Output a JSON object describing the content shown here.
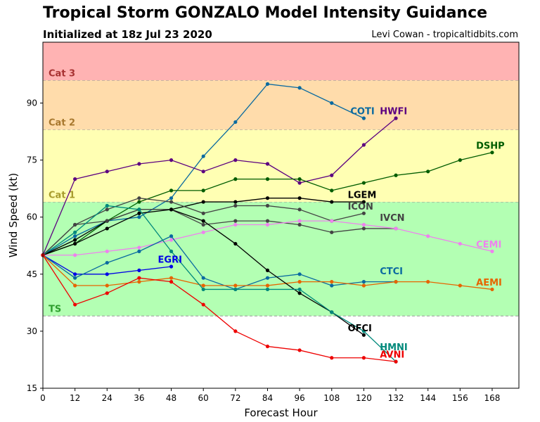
{
  "header": {
    "title": "Tropical Storm GONZALO Model Intensity Guidance",
    "subtitle": "Initialized at 18z Jul 23 2020",
    "credit": "Levi Cowan - tropicaltidbits.com"
  },
  "chart_data": {
    "type": "line",
    "title": "Tropical Storm GONZALO Model Intensity Guidance",
    "xlabel": "Forecast Hour",
    "ylabel": "Wind Speed (kt)",
    "xlim": [
      0,
      178
    ],
    "ylim": [
      15,
      106
    ],
    "xticks": [
      0,
      12,
      24,
      36,
      48,
      60,
      72,
      84,
      96,
      108,
      120,
      132,
      144,
      156,
      168
    ],
    "yticks": [
      15,
      30,
      45,
      60,
      75,
      90
    ],
    "grid": false,
    "bands": [
      {
        "label": "TS",
        "from": 34,
        "to": 64,
        "color": "#b3ffb3",
        "label_color": "#2e9e2e",
        "label_y": 36
      },
      {
        "label": "Cat 1",
        "from": 64,
        "to": 83,
        "color": "#ffffb3",
        "label_color": "#a89c2e",
        "label_y": 66
      },
      {
        "label": "Cat 2",
        "from": 83,
        "to": 96,
        "color": "#ffdcab",
        "label_color": "#a8782e",
        "label_y": 85
      },
      {
        "label": "Cat 3",
        "from": 96,
        "to": 106,
        "color": "#ffb3b3",
        "label_color": "#a83232",
        "label_y": 98
      }
    ],
    "series": [
      {
        "name": "COTI",
        "color": "#0a6aa0",
        "x": [
          0,
          12,
          24,
          36,
          48,
          60,
          72,
          84,
          96,
          108,
          120
        ],
        "y": [
          50,
          55,
          59,
          60,
          65,
          76,
          85,
          95,
          94,
          90,
          86
        ],
        "label_x": 115,
        "label_y": 87
      },
      {
        "name": "HWFI",
        "color": "#5c0080",
        "x": [
          0,
          12,
          24,
          36,
          48,
          60,
          72,
          84,
          96,
          108,
          120,
          132
        ],
        "y": [
          50,
          70,
          72,
          74,
          75,
          72,
          75,
          74,
          69,
          71,
          79,
          86
        ],
        "label_x": 126,
        "label_y": 87
      },
      {
        "name": "DSHP",
        "color": "#005c00",
        "x": [
          0,
          12,
          24,
          36,
          48,
          60,
          72,
          84,
          96,
          108,
          120,
          132,
          144,
          156,
          168
        ],
        "y": [
          50,
          53,
          59,
          64,
          67,
          67,
          70,
          70,
          70,
          67,
          69,
          71,
          72,
          75,
          77
        ],
        "label_x": 162,
        "label_y": 78
      },
      {
        "name": "LGEM",
        "color": "#000000",
        "x": [
          0,
          12,
          24,
          36,
          48,
          60,
          72,
          84,
          96,
          108,
          120
        ],
        "y": [
          50,
          54,
          59,
          62,
          62,
          64,
          64,
          65,
          65,
          64,
          64
        ],
        "label_x": 114,
        "label_y": 65
      },
      {
        "name": "ICON",
        "color": "#444444",
        "x": [
          0,
          12,
          24,
          36,
          48,
          60,
          72,
          84,
          96,
          108,
          120
        ],
        "y": [
          50,
          58,
          62,
          65,
          64,
          61,
          63,
          63,
          62,
          59,
          61
        ],
        "label_x": 114,
        "label_y": 62
      },
      {
        "name": "IVCN",
        "color": "#444444",
        "x": [
          0,
          12,
          24,
          36,
          48,
          60,
          72,
          84,
          96,
          108,
          120,
          132
        ],
        "y": [
          50,
          58,
          59,
          62,
          62,
          58,
          59,
          59,
          58,
          56,
          57,
          57
        ],
        "label_x": 126,
        "label_y": 59
      },
      {
        "name": "CEMI",
        "color": "#ee82ee",
        "x": [
          0,
          12,
          24,
          36,
          48,
          60,
          72,
          84,
          96,
          108,
          120,
          132,
          144,
          156,
          168
        ],
        "y": [
          50,
          50,
          51,
          52,
          54,
          56,
          58,
          58,
          59,
          59,
          58,
          57,
          55,
          53,
          51
        ],
        "label_x": 162,
        "label_y": 52
      },
      {
        "name": "EGRI",
        "color": "#0000e6",
        "x": [
          0,
          12,
          24,
          36,
          48
        ],
        "y": [
          50,
          45,
          45,
          46,
          47
        ],
        "label_x": 43,
        "label_y": 48
      },
      {
        "name": "CTCI",
        "color": "#0a6aa0",
        "x": [
          0,
          12,
          24,
          36,
          48,
          60,
          72,
          84,
          96,
          108,
          120,
          132
        ],
        "y": [
          50,
          44,
          48,
          51,
          55,
          44,
          41,
          44,
          45,
          42,
          43,
          43
        ],
        "label_x": 126,
        "label_y": 45
      },
      {
        "name": "AEMI",
        "color": "#e66400",
        "x": [
          0,
          12,
          24,
          36,
          48,
          60,
          72,
          84,
          96,
          108,
          120,
          132,
          144,
          156,
          168
        ],
        "y": [
          50,
          42,
          42,
          43,
          44,
          42,
          42,
          42,
          43,
          43,
          42,
          43,
          43,
          42,
          41
        ],
        "label_x": 162,
        "label_y": 42
      },
      {
        "name": "OFCI",
        "color": "#000000",
        "x": [
          0,
          12,
          24,
          36,
          48,
          60,
          72,
          84,
          96,
          108,
          120
        ],
        "y": [
          50,
          53,
          57,
          61,
          62,
          59,
          53,
          46,
          40,
          35,
          29
        ],
        "label_x": 114,
        "label_y": 30
      },
      {
        "name": "HMNI",
        "color": "#00897b",
        "x": [
          0,
          12,
          24,
          36,
          48,
          60,
          72,
          84,
          96,
          108,
          120,
          132
        ],
        "y": [
          50,
          56,
          63,
          62,
          51,
          41,
          41,
          41,
          41,
          35,
          30,
          22
        ],
        "label_x": 126,
        "label_y": 25
      },
      {
        "name": "AVNI",
        "color": "#ee0000",
        "x": [
          0,
          12,
          24,
          36,
          48,
          60,
          72,
          84,
          96,
          108,
          120,
          132
        ],
        "y": [
          50,
          37,
          40,
          44,
          43,
          37,
          30,
          26,
          25,
          23,
          23,
          22
        ],
        "label_x": 126,
        "label_y": 23
      }
    ]
  }
}
